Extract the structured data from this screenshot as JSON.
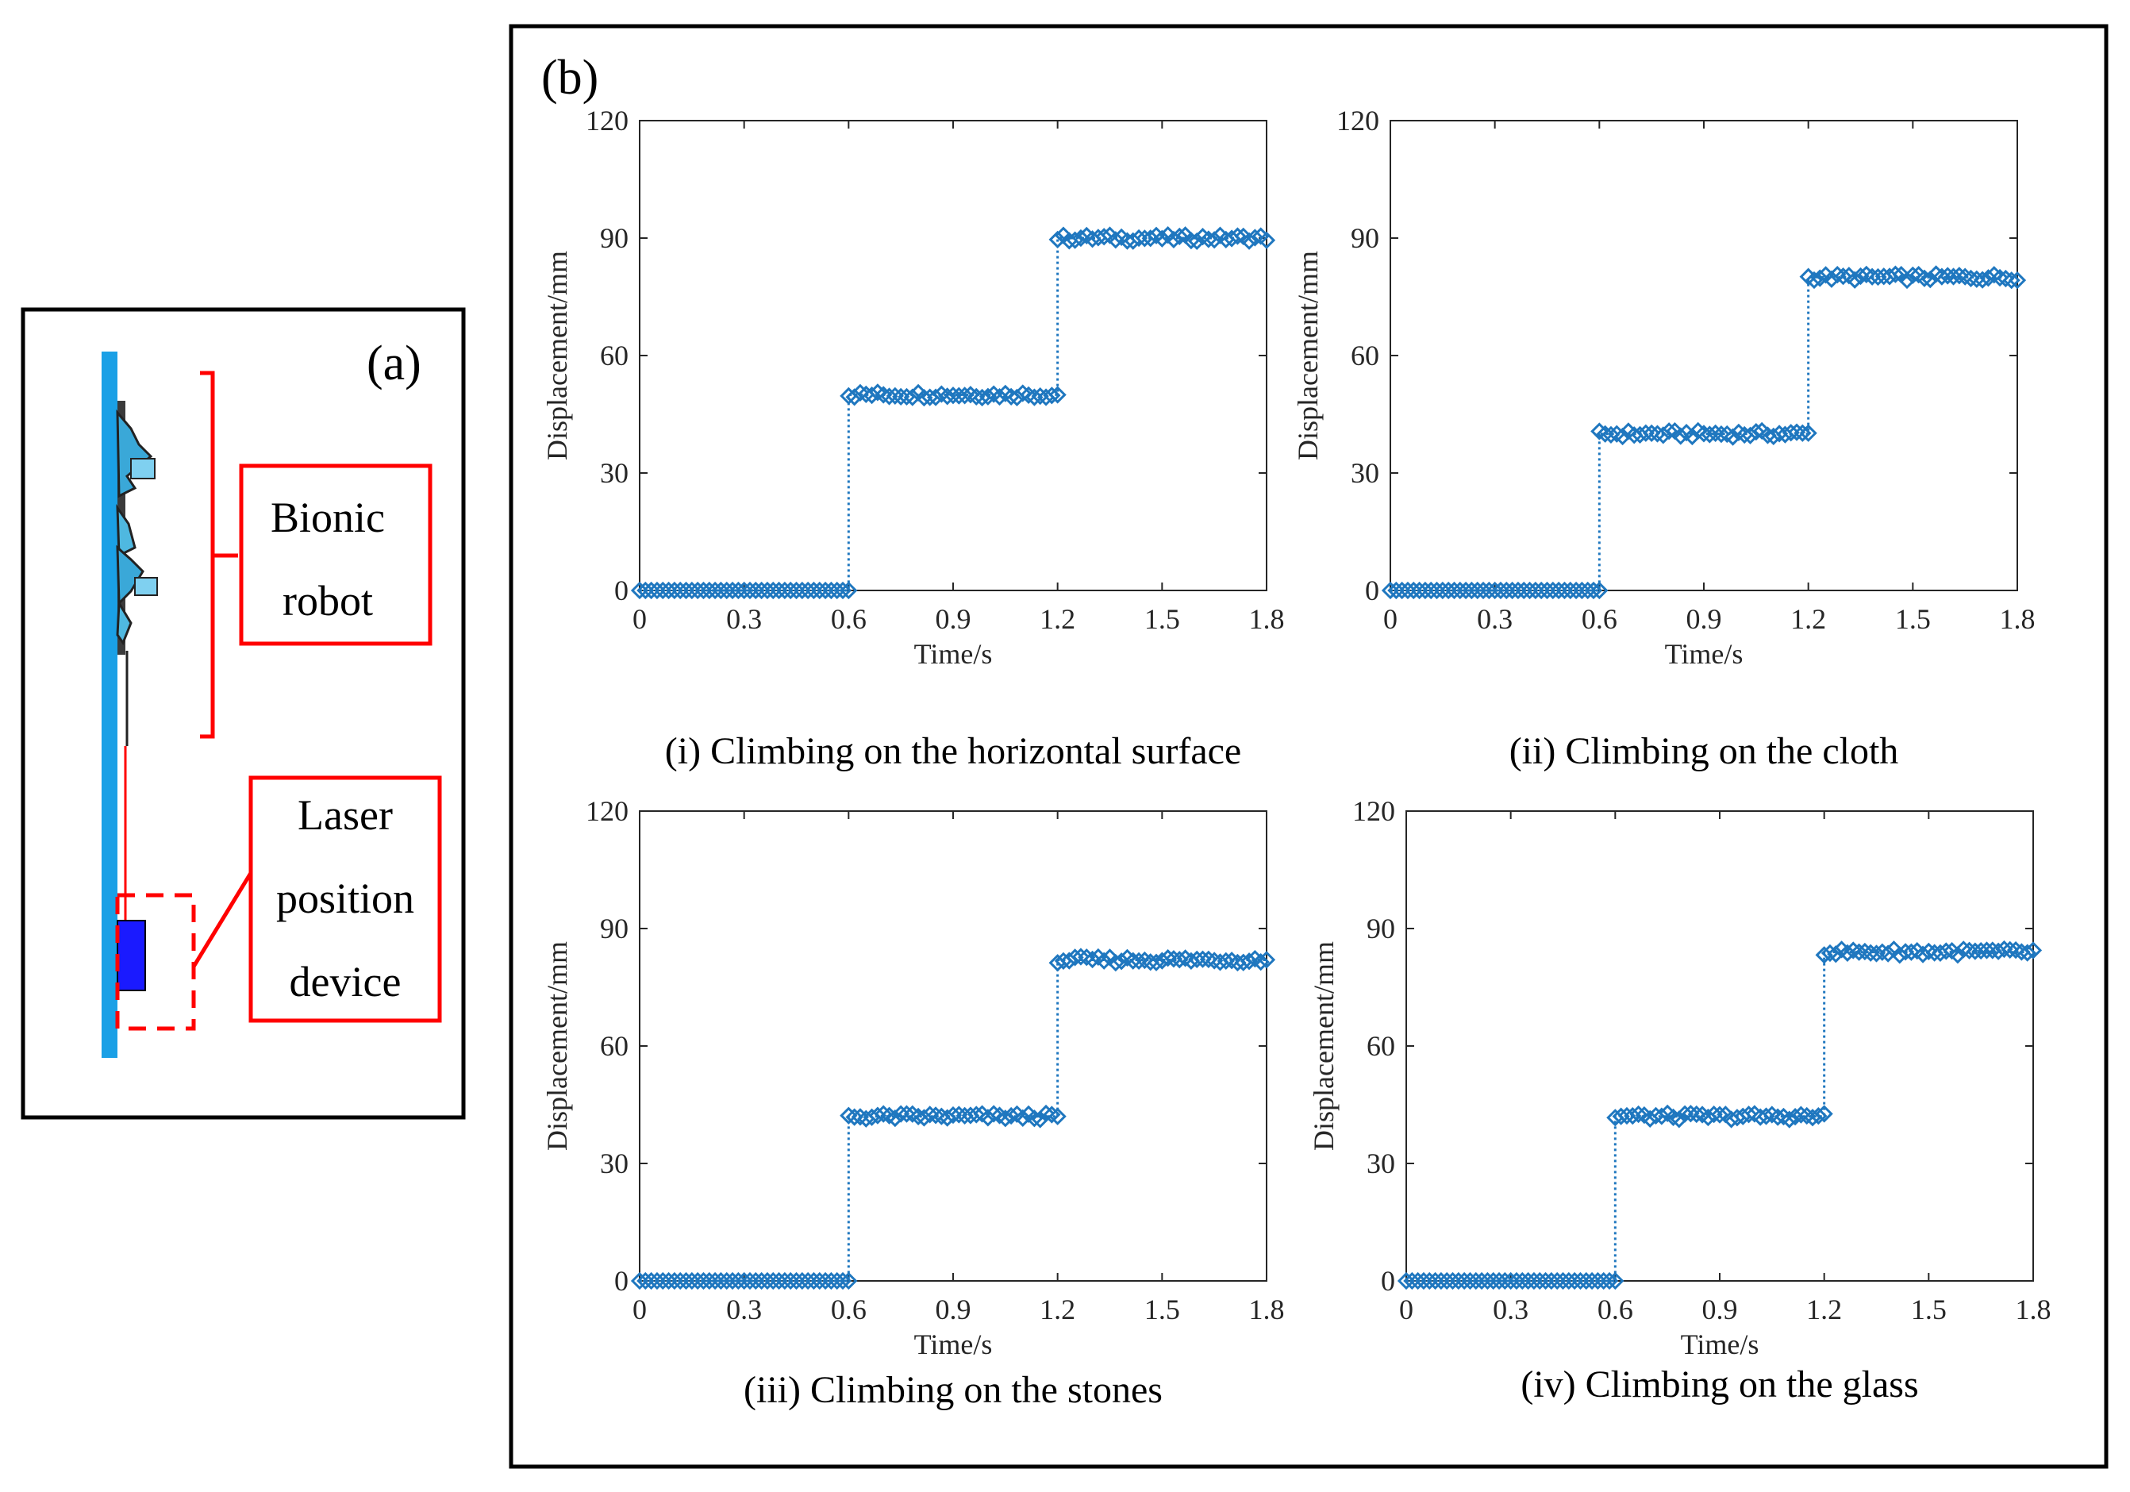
{
  "panel_a": {
    "label": "(a)",
    "robot_label_line1": "Bionic",
    "robot_label_line2": "robot",
    "laser_label_line1": "Laser",
    "laser_label_line2": "position",
    "laser_label_line3": "device"
  },
  "panel_b": {
    "label": "(b)"
  },
  "colors": {
    "series": "#1f77bf",
    "annotation": "#ff0000",
    "wall": "#1aa0e6",
    "device": "#1a1aff"
  },
  "chart_data": [
    {
      "type": "line",
      "title": "(i) Climbing on the horizontal surface",
      "xlabel": "Time/s",
      "ylabel": "Displacement/mm",
      "xlim": [
        0,
        1.8
      ],
      "ylim": [
        0,
        120
      ],
      "xticks": [
        "0",
        "0.3",
        "0.6",
        "0.9",
        "1.2",
        "1.5",
        "1.8"
      ],
      "yticks": [
        "0",
        "30",
        "60",
        "90",
        "120"
      ],
      "grid": false,
      "marker": "diamond",
      "linestyle": "dotted",
      "steps": [
        {
          "from": 0,
          "to": 0.6,
          "value": 0
        },
        {
          "from": 0.6,
          "to": 1.2,
          "value": 50
        },
        {
          "from": 1.2,
          "to": 1.8,
          "value": 90
        }
      ]
    },
    {
      "type": "line",
      "title": "(ii) Climbing on the cloth",
      "xlabel": "Time/s",
      "ylabel": "Displacement/mm",
      "xlim": [
        0,
        1.8
      ],
      "ylim": [
        0,
        120
      ],
      "xticks": [
        "0",
        "0.3",
        "0.6",
        "0.9",
        "1.2",
        "1.5",
        "1.8"
      ],
      "yticks": [
        "0",
        "30",
        "60",
        "90",
        "120"
      ],
      "grid": false,
      "marker": "diamond",
      "linestyle": "dotted",
      "steps": [
        {
          "from": 0,
          "to": 0.6,
          "value": 0
        },
        {
          "from": 0.6,
          "to": 1.2,
          "value": 40
        },
        {
          "from": 1.2,
          "to": 1.8,
          "value": 80
        }
      ]
    },
    {
      "type": "line",
      "title": "(iii) Climbing on the stones",
      "xlabel": "Time/s",
      "ylabel": "Displacement/mm",
      "xlim": [
        0,
        1.8
      ],
      "ylim": [
        0,
        120
      ],
      "xticks": [
        "0",
        "0.3",
        "0.6",
        "0.9",
        "1.2",
        "1.5",
        "1.8"
      ],
      "yticks": [
        "0",
        "30",
        "60",
        "90",
        "120"
      ],
      "grid": false,
      "marker": "diamond",
      "linestyle": "dotted",
      "steps": [
        {
          "from": 0,
          "to": 0.6,
          "value": 0
        },
        {
          "from": 0.6,
          "to": 1.2,
          "value": 42
        },
        {
          "from": 1.2,
          "to": 1.8,
          "value": 82
        }
      ]
    },
    {
      "type": "line",
      "title": "(iv) Climbing on the glass",
      "xlabel": "Time/s",
      "ylabel": "Displacement/mm",
      "xlim": [
        0,
        1.8
      ],
      "ylim": [
        0,
        120
      ],
      "xticks": [
        "0",
        "0.3",
        "0.6",
        "0.9",
        "1.2",
        "1.5",
        "1.8"
      ],
      "yticks": [
        "0",
        "30",
        "60",
        "90",
        "120"
      ],
      "grid": false,
      "marker": "diamond",
      "linestyle": "dotted",
      "steps": [
        {
          "from": 0,
          "to": 0.6,
          "value": 0
        },
        {
          "from": 0.6,
          "to": 1.2,
          "value": 42
        },
        {
          "from": 1.2,
          "to": 1.8,
          "value": 84
        }
      ]
    }
  ]
}
